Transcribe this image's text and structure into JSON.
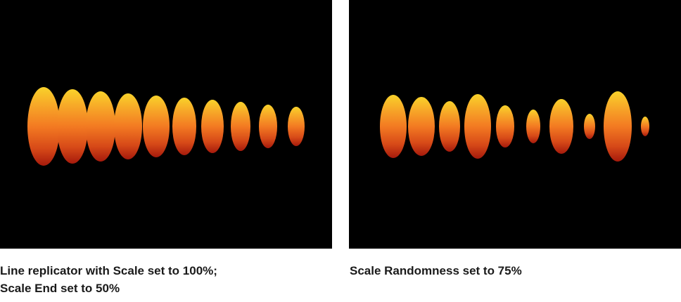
{
  "panels": [
    {
      "caption_lines": [
        "Line replicator with Scale set to 100%;",
        "Scale End set to 50%"
      ]
    },
    {
      "caption_lines": [
        "Scale Randomness set to 75%"
      ]
    }
  ]
}
